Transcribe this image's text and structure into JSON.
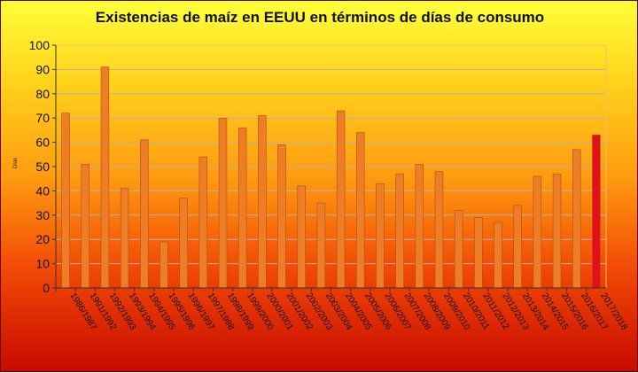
{
  "chart_data": {
    "type": "bar",
    "title": "Existencias de maíz en EEUU  en  términos de días de consumo",
    "ylabel": "Días",
    "xlabel": "",
    "ylim": [
      0,
      100
    ],
    "yticks": [
      0,
      10,
      20,
      30,
      40,
      50,
      60,
      70,
      80,
      90,
      100
    ],
    "grid": true,
    "legend": "none",
    "categories": [
      "1986/1987",
      "1991/1992",
      "1992/1993",
      "1993/1994",
      "1994/1995",
      "1995/1996",
      "1996/1997",
      "1997/1998",
      "1998/1999",
      "1999/2000",
      "2000/2001",
      "2001/2002",
      "2002/2003",
      "2003/2004",
      "2004/2005",
      "2005/2006",
      "2006/2007",
      "2007/2008",
      "2008/2009",
      "2009/2010",
      "2010/2011",
      "2011/2012",
      "2012/2013",
      "2013/2014",
      "2014/2015",
      "2015/2016",
      "2016/2017",
      "2017/2018"
    ],
    "values": [
      72,
      51,
      91,
      41,
      61,
      19,
      37,
      54,
      70,
      66,
      71,
      59,
      42,
      35,
      73,
      64,
      43,
      47,
      51,
      48,
      32,
      29,
      27,
      34,
      46,
      47,
      57,
      63
    ],
    "colors": {
      "bar": "#ee7d25",
      "highlight": "#e3101a",
      "grid": "#b3b3b3",
      "plot_border": "#e8c070"
    },
    "highlight_index": 27
  }
}
